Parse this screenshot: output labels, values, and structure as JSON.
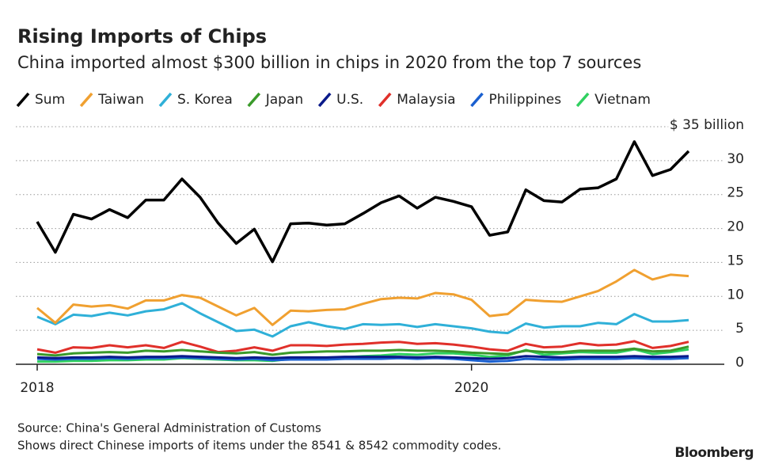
{
  "chart_data": {
    "type": "line",
    "title": "Rising Imports of Chips",
    "subtitle": "China imported almost $300 billion in chips in 2020 from the top 7 sources",
    "source": "Source: China's General Administration of Customs",
    "note": "Shows direct Chinese imports of items under the 8541 & 8542 commodity codes.",
    "brand": "Bloomberg",
    "categories": [
      "2018",
      null,
      null,
      null,
      null,
      null,
      null,
      null,
      null,
      null,
      null,
      null,
      null,
      null,
      null,
      null,
      null,
      null,
      null,
      null,
      null,
      null,
      null,
      null,
      "2020",
      null,
      null,
      null,
      null,
      null,
      null,
      null,
      null,
      null,
      null,
      null,
      null
    ],
    "ylim": [
      0,
      35
    ],
    "yticks": [
      0,
      5,
      10,
      15,
      20,
      25,
      30,
      {
        "value": 35,
        "label": "$ 35 billion"
      }
    ],
    "grid": true,
    "series": [
      {
        "name": "Sum",
        "color": "#000000",
        "values": [
          21,
          16.5,
          22.1,
          21.4,
          22.8,
          21.6,
          24.2,
          24.2,
          27.3,
          24.6,
          20.8,
          17.8,
          19.9,
          15.1,
          20.7,
          20.8,
          20.5,
          20.7,
          22.2,
          23.8,
          24.8,
          23,
          24.6,
          24,
          23.2,
          19,
          19.5,
          25.7,
          24.1,
          23.9,
          25.8,
          26,
          27.3,
          32.8,
          27.8,
          28.7,
          31.4
        ]
      },
      {
        "name": "Taiwan",
        "color": "#f0a030",
        "values": [
          8.3,
          6.1,
          8.8,
          8.5,
          8.7,
          8.2,
          9.4,
          9.4,
          10.2,
          9.8,
          8.5,
          7.2,
          8.3,
          5.8,
          7.9,
          7.8,
          8.0,
          8.1,
          8.9,
          9.6,
          9.8,
          9.7,
          10.5,
          10.3,
          9.5,
          7.1,
          7.4,
          9.5,
          9.3,
          9.2,
          10.0,
          10.8,
          12.2,
          13.9,
          12.5,
          13.2,
          13.0
        ]
      },
      {
        "name": "S. Korea",
        "color": "#2fb0d8",
        "values": [
          7.0,
          5.9,
          7.3,
          7.1,
          7.6,
          7.2,
          7.8,
          8.1,
          9.0,
          7.5,
          6.2,
          4.9,
          5.1,
          4.1,
          5.6,
          6.2,
          5.6,
          5.2,
          5.9,
          5.8,
          5.9,
          5.5,
          5.9,
          5.6,
          5.3,
          4.8,
          4.6,
          6.0,
          5.4,
          5.6,
          5.6,
          6.1,
          5.9,
          7.4,
          6.3,
          6.3,
          6.5
        ]
      },
      {
        "name": "Japan",
        "color": "#3a9a2a",
        "values": [
          1.5,
          1.3,
          1.6,
          1.7,
          1.8,
          1.7,
          2.0,
          1.9,
          2.1,
          1.9,
          1.7,
          1.6,
          1.8,
          1.4,
          1.7,
          1.8,
          1.9,
          1.9,
          2.0,
          2.0,
          2.1,
          2.0,
          2.0,
          1.9,
          1.7,
          1.6,
          1.5,
          2.0,
          1.8,
          1.8,
          2.0,
          2.0,
          2.0,
          2.3,
          1.9,
          2.0,
          2.6
        ]
      },
      {
        "name": "U.S.",
        "color": "#0a1a8a",
        "values": [
          1.0,
          0.9,
          1.0,
          1.0,
          1.1,
          1.0,
          1.1,
          1.1,
          1.2,
          1.1,
          1.0,
          0.9,
          1.0,
          0.9,
          1.0,
          1.0,
          1.0,
          1.1,
          1.1,
          1.1,
          1.1,
          1.0,
          1.1,
          1.0,
          0.9,
          0.8,
          0.9,
          1.2,
          1.1,
          1.0,
          1.1,
          1.1,
          1.1,
          1.2,
          1.1,
          1.1,
          1.2
        ]
      },
      {
        "name": "Malaysia",
        "color": "#e0302a",
        "values": [
          2.2,
          1.7,
          2.5,
          2.4,
          2.8,
          2.5,
          2.8,
          2.4,
          3.3,
          2.6,
          1.8,
          2.0,
          2.5,
          2.0,
          2.8,
          2.8,
          2.7,
          2.9,
          3.0,
          3.2,
          3.3,
          3.0,
          3.1,
          2.9,
          2.6,
          2.2,
          2.0,
          3.0,
          2.5,
          2.6,
          3.1,
          2.8,
          2.9,
          3.4,
          2.4,
          2.7,
          3.3
        ]
      },
      {
        "name": "Philippines",
        "color": "#1a60d0",
        "values": [
          0.8,
          0.7,
          0.8,
          0.8,
          0.9,
          0.8,
          0.9,
          0.9,
          1.0,
          0.9,
          0.8,
          0.7,
          0.8,
          0.6,
          0.7,
          0.7,
          0.7,
          0.8,
          0.8,
          0.8,
          0.9,
          0.8,
          0.9,
          0.8,
          0.6,
          0.4,
          0.5,
          0.8,
          0.7,
          0.7,
          0.8,
          0.8,
          0.8,
          0.9,
          0.8,
          0.8,
          0.9
        ]
      },
      {
        "name": "Vietnam",
        "color": "#30d060",
        "values": [
          0.4,
          0.4,
          0.5,
          0.5,
          0.6,
          0.6,
          0.7,
          0.7,
          0.9,
          0.8,
          0.7,
          0.6,
          0.6,
          0.5,
          0.8,
          0.9,
          0.9,
          1.0,
          1.2,
          1.3,
          1.5,
          1.4,
          1.6,
          1.6,
          1.4,
          1.1,
          1.3,
          2.1,
          1.4,
          1.6,
          1.8,
          1.7,
          1.7,
          2.2,
          1.5,
          1.8,
          2.2
        ]
      }
    ]
  }
}
